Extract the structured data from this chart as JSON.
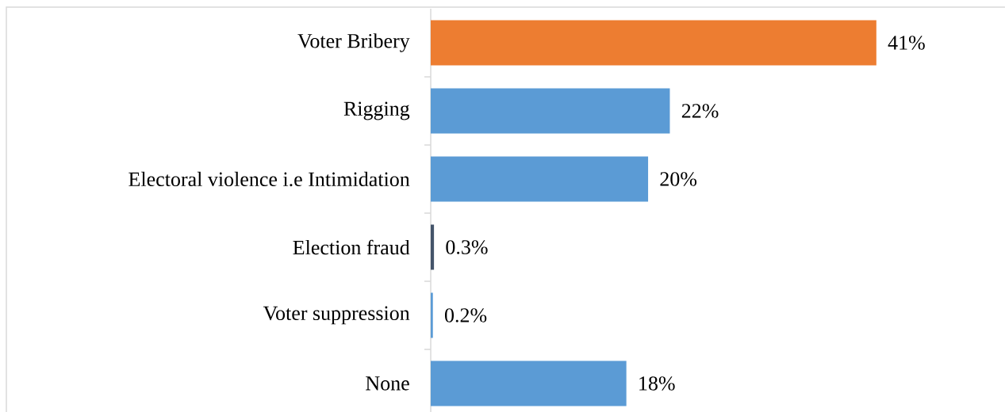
{
  "chart_data": {
    "type": "bar",
    "orientation": "horizontal",
    "categories": [
      "Voter Bribery",
      "Rigging",
      "Electoral violence i.e Intimidation",
      "Election fraud",
      "Voter suppression",
      "None"
    ],
    "values": [
      41,
      22,
      20,
      0.3,
      0.2,
      18
    ],
    "colors": [
      "#ed7d31",
      "#5b9bd5",
      "#5b9bd5",
      "#44546a",
      "#5b9bd5",
      "#5b9bd5"
    ],
    "value_labels": [
      "41%",
      "22%",
      "20%",
      "0.3%",
      "0.2%",
      "18%"
    ]
  }
}
